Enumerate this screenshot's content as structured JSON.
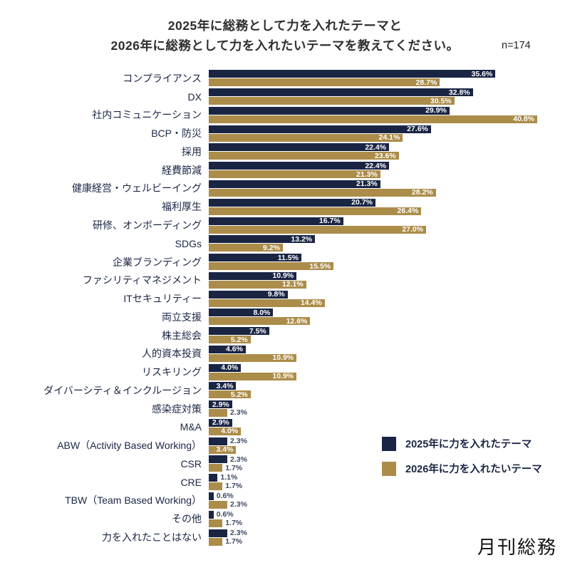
{
  "title": {
    "line1": "2025年に総務として力を入れたテーマと",
    "line2": "2026年に総務として力を入れたいテーマを教えてください。",
    "n_label": "n=174"
  },
  "legend": [
    {
      "label": "2025年に力を入れたテーマ",
      "color": "#1a2544"
    },
    {
      "label": "2026年に力を入れたいテーマ",
      "color": "#ab8c49"
    }
  ],
  "logo_text": "月刊総務",
  "colors": {
    "navy": "#1a2544",
    "gold": "#ab8c49",
    "outside_value_label": "#3c4963"
  },
  "chart_data": {
    "type": "bar",
    "orientation": "horizontal",
    "unit": "%",
    "sample_size": 174,
    "value_labels": "on",
    "xlim": [
      0,
      41
    ],
    "legend_position": "right-middle",
    "categories": [
      "コンプライアンス",
      "DX",
      "社内コミュニケーション",
      "BCP・防災",
      "採用",
      "経費節減",
      "健康経営・ウェルビーイング",
      "福利厚生",
      "研修、オンボーディング",
      "SDGs",
      "企業ブランディング",
      "ファシリティマネジメント",
      "ITセキュリティー",
      "両立支援",
      "株主総会",
      "人的資本投資",
      "リスキリング",
      "ダイバーシティ＆インクルージョン",
      "感染症対策",
      "M&A",
      "ABW（Activity Based Working）",
      "CSR",
      "CRE",
      "TBW（Team Based Working）",
      "その他",
      "力を入れたことはない"
    ],
    "series": [
      {
        "name": "2025年に力を入れたテーマ",
        "color": "#1a2544",
        "values": [
          35.6,
          32.8,
          29.9,
          27.6,
          22.4,
          22.4,
          21.3,
          20.7,
          16.7,
          13.2,
          11.5,
          10.9,
          9.8,
          8.0,
          7.5,
          4.6,
          4.0,
          3.4,
          2.9,
          2.9,
          2.3,
          2.3,
          1.1,
          0.6,
          0.6,
          2.3
        ]
      },
      {
        "name": "2026年に力を入れたいテーマ",
        "color": "#ab8c49",
        "values": [
          28.7,
          30.5,
          40.8,
          24.1,
          23.6,
          21.3,
          28.2,
          26.4,
          27.0,
          9.2,
          15.5,
          12.1,
          14.4,
          12.6,
          5.2,
          10.9,
          10.9,
          5.2,
          2.3,
          4.0,
          3.4,
          1.7,
          1.7,
          2.3,
          1.7,
          1.7
        ]
      }
    ]
  }
}
